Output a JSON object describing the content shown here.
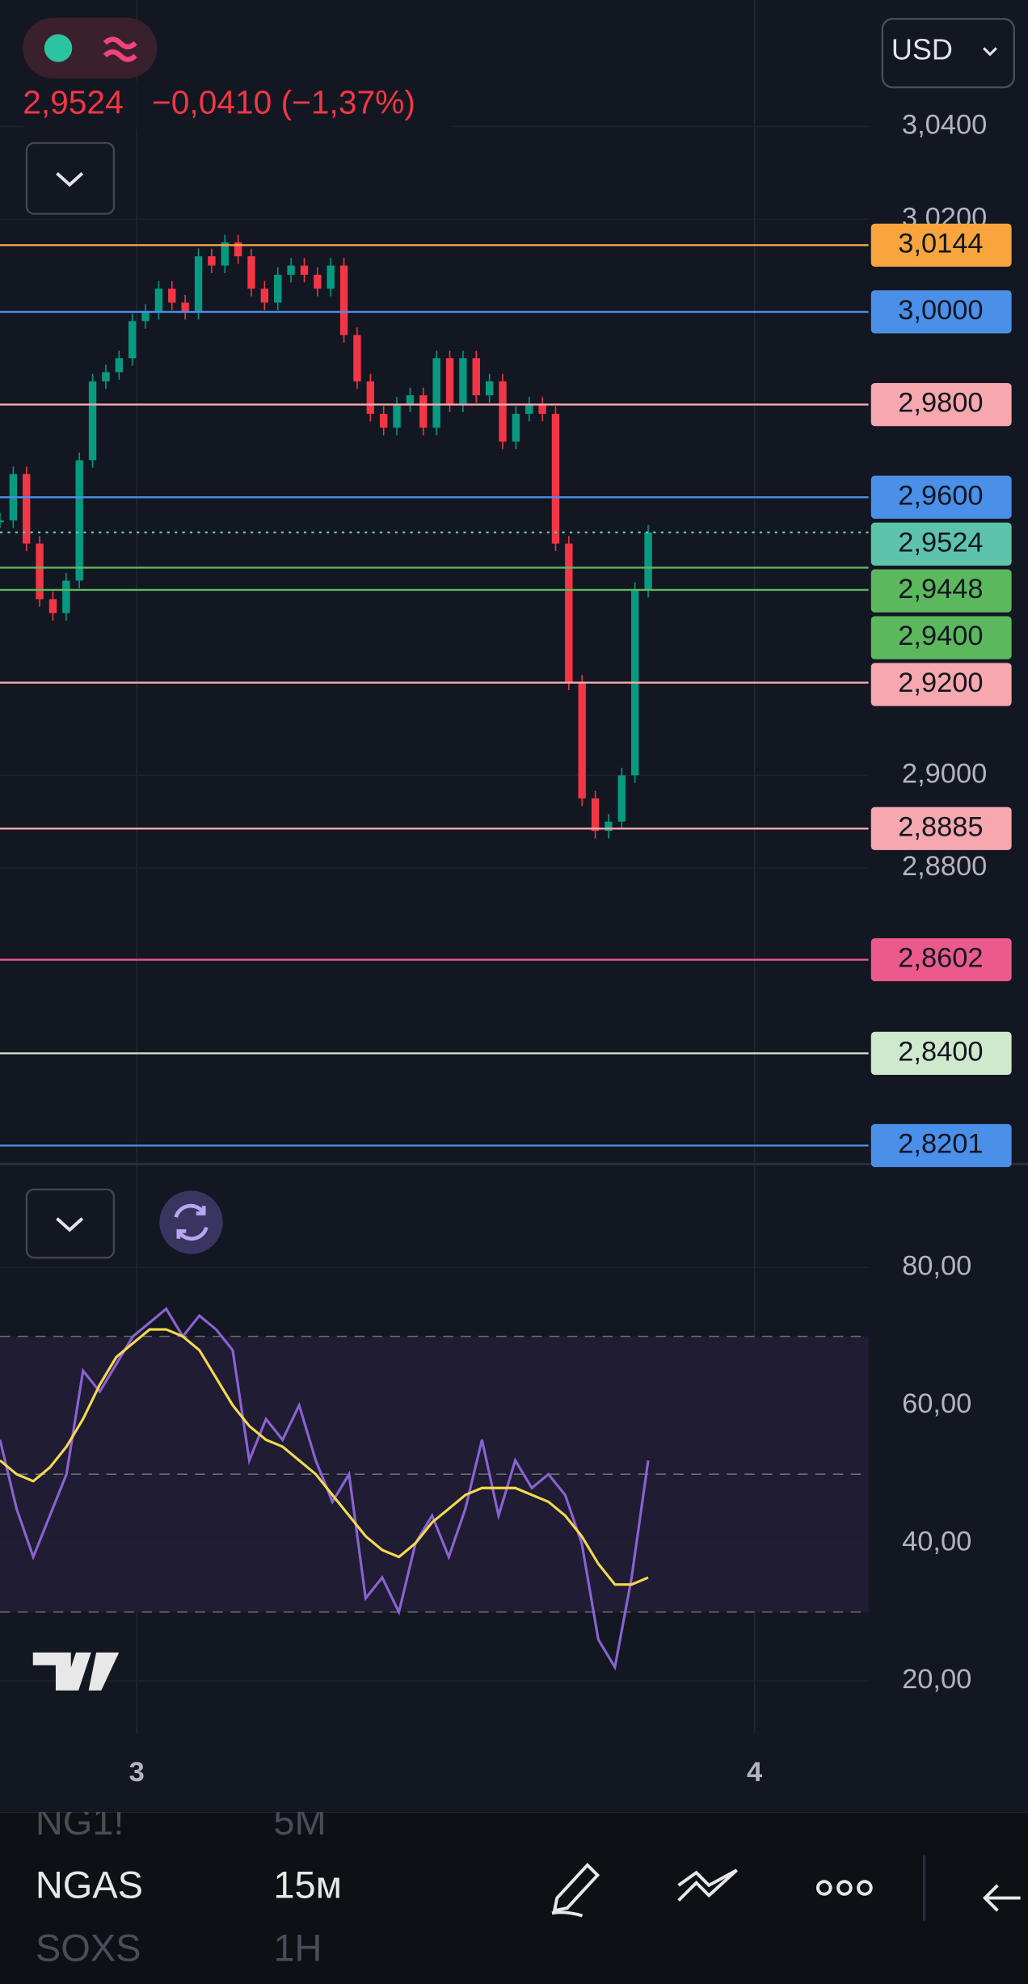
{
  "header": {
    "price": "2,9524",
    "change": "−0,0410 (−1,37%)",
    "currency": "USD"
  },
  "chart_data": [
    {
      "type": "candlestick",
      "up_color": "#089981",
      "down_color": "#f23645",
      "closes": [
        2.955,
        2.965,
        2.95,
        2.938,
        2.935,
        2.942,
        2.968,
        2.985,
        2.987,
        2.99,
        2.998,
        3.0,
        3.005,
        3.002,
        3.0,
        3.012,
        3.01,
        3.015,
        3.012,
        3.005,
        3.002,
        3.008,
        3.01,
        3.008,
        3.005,
        3.01,
        2.995,
        2.985,
        2.978,
        2.975,
        2.98,
        2.982,
        2.975,
        2.99,
        2.98,
        2.99,
        2.982,
        2.985,
        2.972,
        2.978,
        2.98,
        2.978,
        2.95,
        2.92,
        2.895,
        2.888,
        2.89,
        2.9,
        2.94,
        2.9524
      ],
      "ylim": [
        2.8161,
        3.0673
      ],
      "yticks": [
        {
          "value": 3.04,
          "label": "3,0400"
        },
        {
          "value": 3.02,
          "label": "3,0200"
        },
        {
          "value": 2.9,
          "label": "2,9000"
        },
        {
          "value": 2.88,
          "label": "2,8800"
        }
      ],
      "levels": [
        {
          "value": 3.0144,
          "label": "3,0144",
          "color": "#f7a53c"
        },
        {
          "value": 3.0,
          "label": "3,0000",
          "color": "#4a8fe8"
        },
        {
          "value": 2.98,
          "label": "2,9800",
          "color": "#f7a8ae"
        },
        {
          "value": 2.96,
          "label": "2,9600",
          "color": "#4a8fe8"
        },
        {
          "value": 2.9524,
          "label": "2,9524",
          "color": "#5ec4a9",
          "line_style": "dotted"
        },
        {
          "value": 2.9448,
          "label": "2,9448",
          "color": "#5cb85c"
        },
        {
          "value": 2.94,
          "label": "2,9400",
          "color": "#5cb85c"
        },
        {
          "value": 2.92,
          "label": "2,9200",
          "color": "#f7a8ae"
        },
        {
          "value": 2.8885,
          "label": "2,8885",
          "color": "#f7a8ae"
        },
        {
          "value": 2.8602,
          "label": "2,8602",
          "color": "#ec5a8c"
        },
        {
          "value": 2.84,
          "label": "2,8400",
          "color": "#cfe9cc"
        },
        {
          "value": 2.8201,
          "label": "2,8201",
          "color": "#4a8fe8"
        }
      ],
      "x_labels": [
        "3",
        "4"
      ]
    },
    {
      "type": "line",
      "ylim": [
        10,
        95
      ],
      "yticks": [
        {
          "value": 80,
          "label": "80,00"
        },
        {
          "value": 60,
          "label": "60,00"
        },
        {
          "value": 40,
          "label": "40,00"
        },
        {
          "value": 20,
          "label": "20,00"
        }
      ],
      "bands": [
        70,
        50,
        30
      ],
      "series": [
        {
          "color": "#8a63d2",
          "values": [
            55,
            45,
            38,
            44,
            50,
            65,
            62,
            66,
            70,
            72,
            74,
            70,
            73,
            71,
            68,
            52,
            58,
            55,
            60,
            52,
            46,
            50,
            32,
            35,
            30,
            40,
            44,
            38,
            45,
            55,
            44,
            52,
            48,
            50,
            47,
            40,
            26,
            22,
            35,
            52
          ]
        },
        {
          "color": "#f5d94e",
          "values": [
            52,
            50,
            49,
            51,
            54,
            58,
            63,
            67,
            69,
            71,
            71,
            70,
            68,
            64,
            60,
            57,
            55,
            54,
            52,
            50,
            47,
            44,
            41,
            39,
            38,
            40,
            43,
            45,
            47,
            48,
            48,
            48,
            47,
            46,
            44,
            41,
            37,
            34,
            34,
            35
          ]
        }
      ]
    }
  ],
  "toolbar": {
    "symbols": [
      "NG1!",
      "NGAS",
      "SOXS"
    ],
    "intervals": [
      "5М",
      "15м",
      "1Н"
    ]
  }
}
